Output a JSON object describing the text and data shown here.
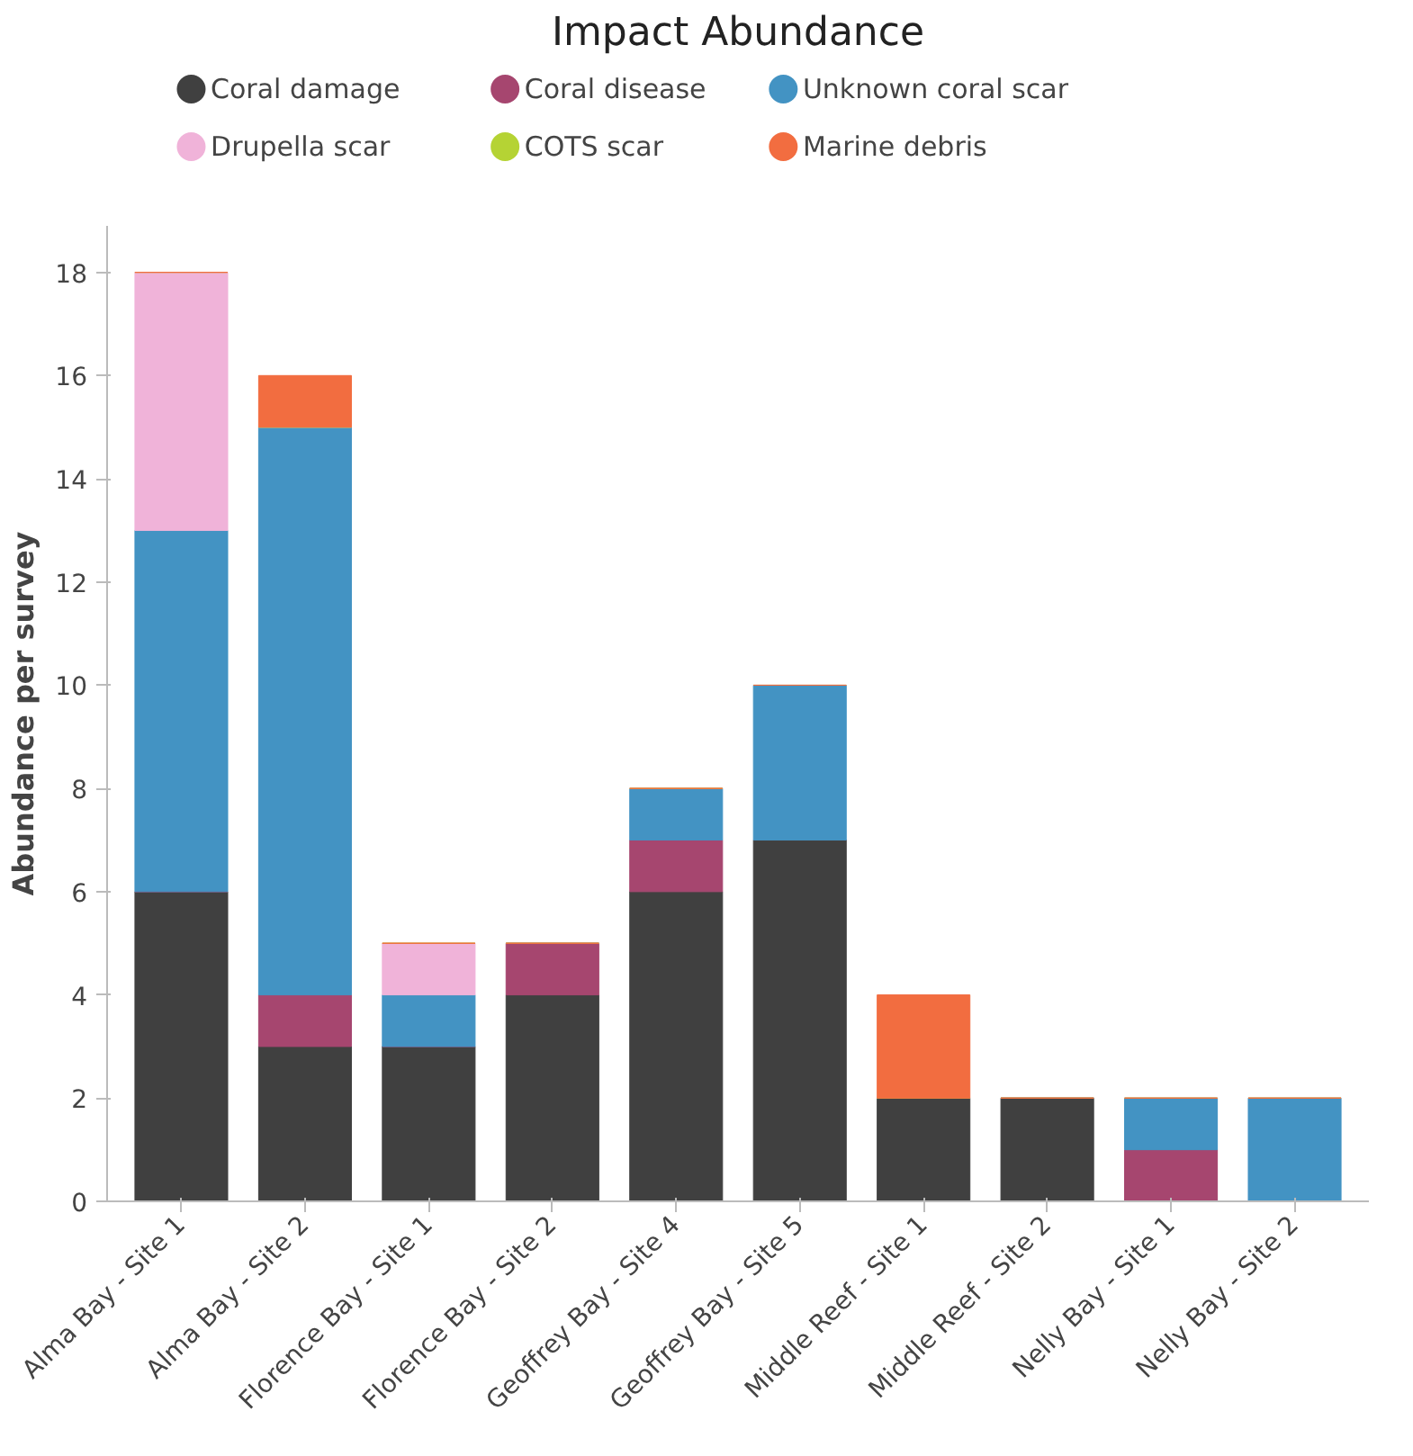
{
  "chart_data": {
    "type": "bar",
    "title": "Impact Abundance",
    "ylabel": "Abundance per survey",
    "stacked": true,
    "legend": "top",
    "marker": "circle",
    "grid": false,
    "categories": [
      "Alma Bay - Site 1",
      "Alma Bay - Site 2",
      "Florence Bay - Site 1",
      "Florence Bay - Site 2",
      "Geoffrey Bay - Site 4",
      "Geoffrey Bay - Site 5",
      "Middle Reef - Site 1",
      "Middle Reef - Site 2",
      "Nelly Bay - Site 1",
      "Nelly Bay - Site 2"
    ],
    "ylim": [
      0,
      18.9
    ],
    "yticks": [
      0,
      2,
      4,
      6,
      8,
      10,
      12,
      14,
      16,
      18
    ],
    "series": [
      {
        "name": "Coral damage",
        "color": "#404040",
        "values": [
          6,
          3,
          3,
          4,
          6,
          7,
          2,
          2,
          0,
          0
        ]
      },
      {
        "name": "Coral disease",
        "color": "#a6466f",
        "values": [
          0,
          1,
          0,
          1,
          1,
          0,
          0,
          0,
          1,
          0
        ]
      },
      {
        "name": "Unknown coral scar",
        "color": "#4393c3",
        "values": [
          7,
          11,
          1,
          0,
          1,
          3,
          0,
          0,
          1,
          2
        ]
      },
      {
        "name": "Drupella scar",
        "color": "#f0b3d9",
        "values": [
          5,
          0,
          1,
          0,
          0,
          0,
          0,
          0,
          0,
          0
        ]
      },
      {
        "name": "COTS scar",
        "color": "#b5d334",
        "values": [
          0,
          0,
          0,
          0,
          0,
          0,
          0,
          0,
          0,
          0
        ]
      },
      {
        "name": "Marine debris",
        "color": "#f26d40",
        "values": [
          0,
          1,
          0,
          0,
          0,
          0,
          2,
          0,
          0,
          0
        ]
      }
    ]
  }
}
